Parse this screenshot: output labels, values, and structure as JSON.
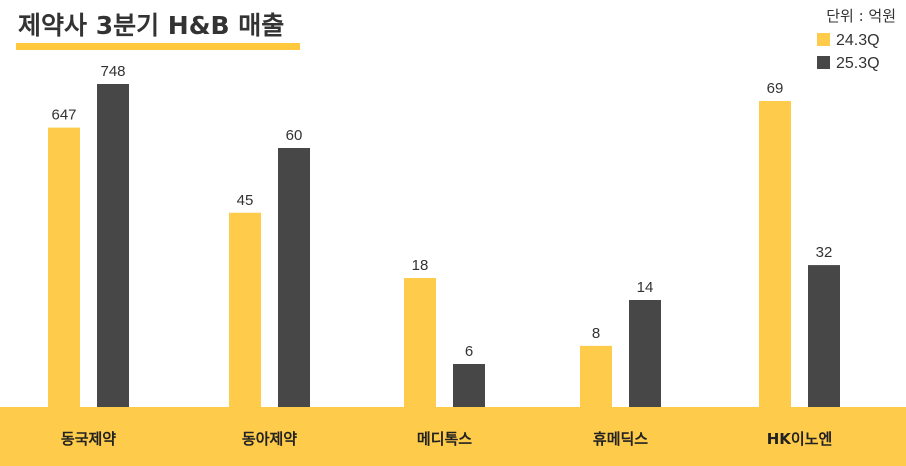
{
  "title": "제약사 3분기 H&B 매출",
  "unit_label": "단위 : 억원",
  "colors": {
    "series_24": "#FFCB4A",
    "series_25": "#474747",
    "title_underline": "#FFC83D",
    "footer_band": "#FFCB4A"
  },
  "chart_data": {
    "type": "bar",
    "title": "제약사 3분기 H&B 매출",
    "unit": "단위 : 억원",
    "legend_position": "top-right",
    "grid": false,
    "categories": [
      "동국제약",
      "동아제약",
      "메디톡스",
      "휴메딕스",
      "HK이노엔"
    ],
    "series": [
      {
        "name": "24.3Q",
        "values": [
          647,
          45,
          18,
          8,
          69
        ],
        "labels": [
          "647",
          "45",
          "18",
          "8",
          "69"
        ]
      },
      {
        "name": "25.3Q",
        "values": [
          748,
          60,
          6,
          14,
          32
        ],
        "labels": [
          "748",
          "60",
          "6",
          "14",
          "32"
        ]
      }
    ]
  }
}
